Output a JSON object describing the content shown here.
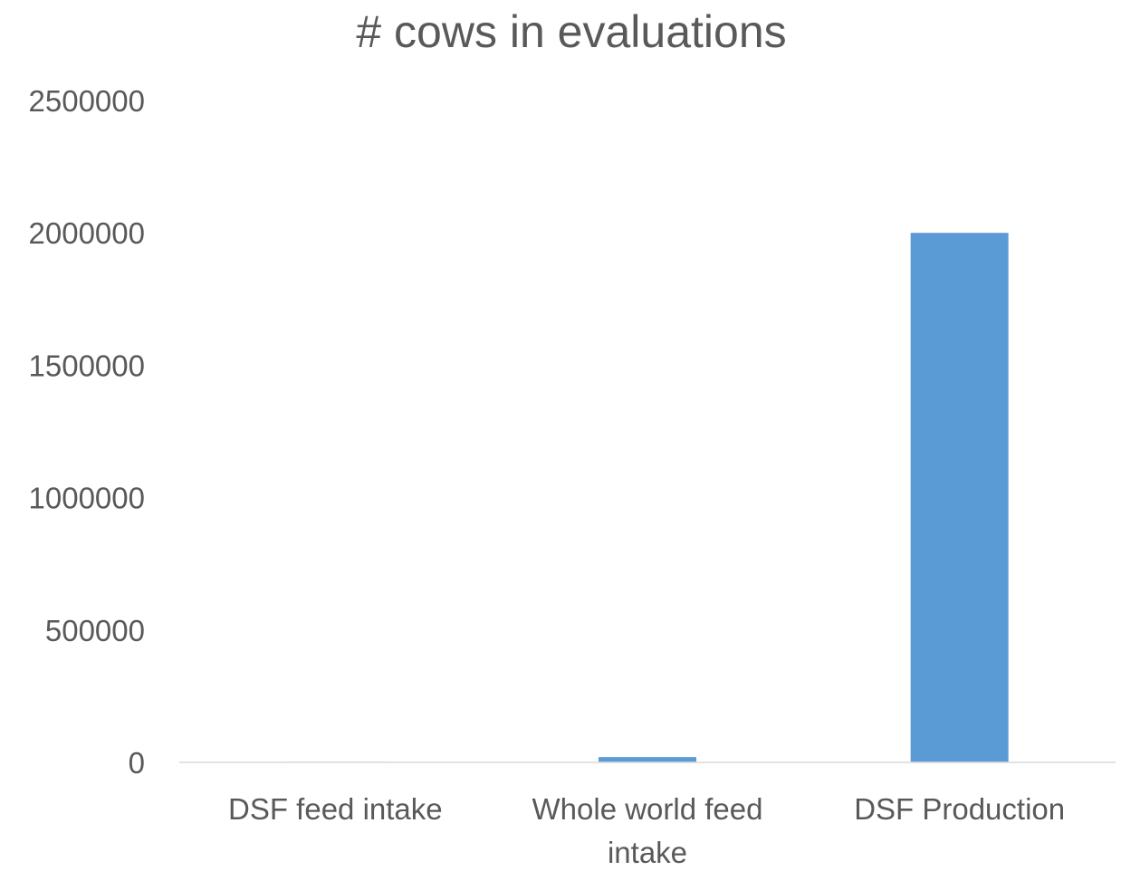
{
  "chart_data": {
    "type": "bar",
    "title": "# cows in evaluations",
    "categories": [
      "DSF feed intake",
      "Whole world feed intake",
      "DSF Production"
    ],
    "category_label_lines": [
      [
        "DSF feed intake"
      ],
      [
        "Whole world feed",
        "intake"
      ],
      [
        "DSF Production"
      ]
    ],
    "values": [
      2000,
      20000,
      2000000
    ],
    "ylim": [
      0,
      2500000
    ],
    "yticks": [
      0,
      500000,
      1000000,
      1500000,
      2000000,
      2500000
    ],
    "ytick_labels": [
      "0",
      "500000",
      "1000000",
      "1500000",
      "2000000",
      "2500000"
    ],
    "xlabel": "",
    "ylabel": "",
    "grid": false,
    "legend": "none",
    "bar_color": "#5B9BD5",
    "axis_color": "#D9D9D9",
    "text_color": "#595959"
  }
}
